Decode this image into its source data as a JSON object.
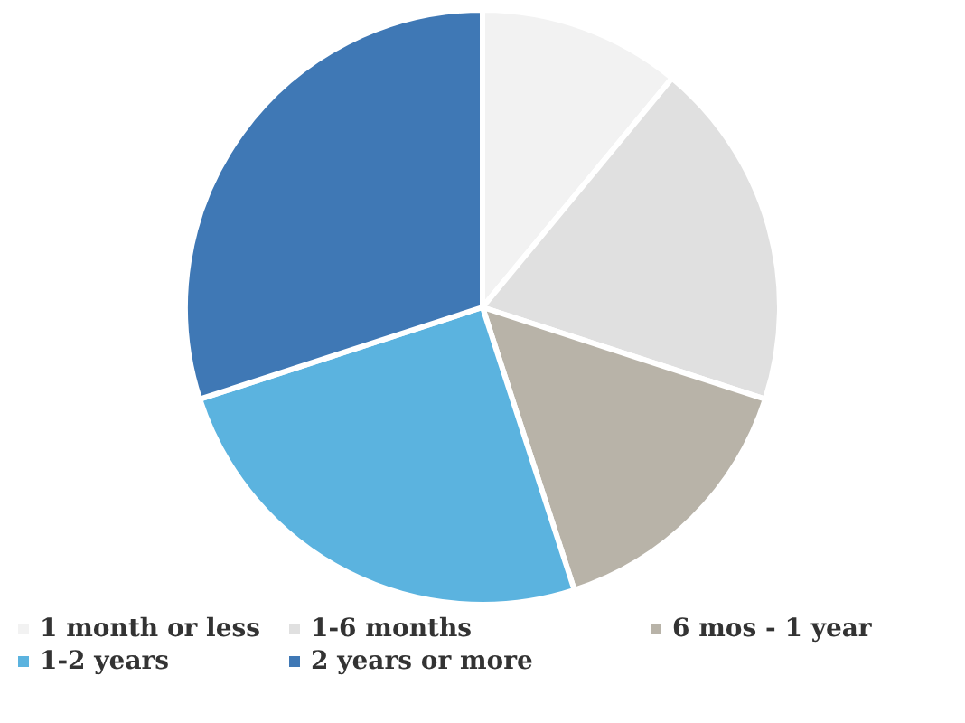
{
  "chart_data": {
    "type": "pie",
    "categories": [
      "1 month or less",
      "1-6 months",
      "6 mos - 1 year",
      "1-2 years",
      "2 years or more"
    ],
    "values": [
      11,
      19,
      15,
      25,
      30
    ],
    "colors": [
      "#f2f2f2",
      "#e0e0e0",
      "#b8b3a8",
      "#5bb3df",
      "#3f78b5"
    ],
    "legend": "bottom"
  }
}
